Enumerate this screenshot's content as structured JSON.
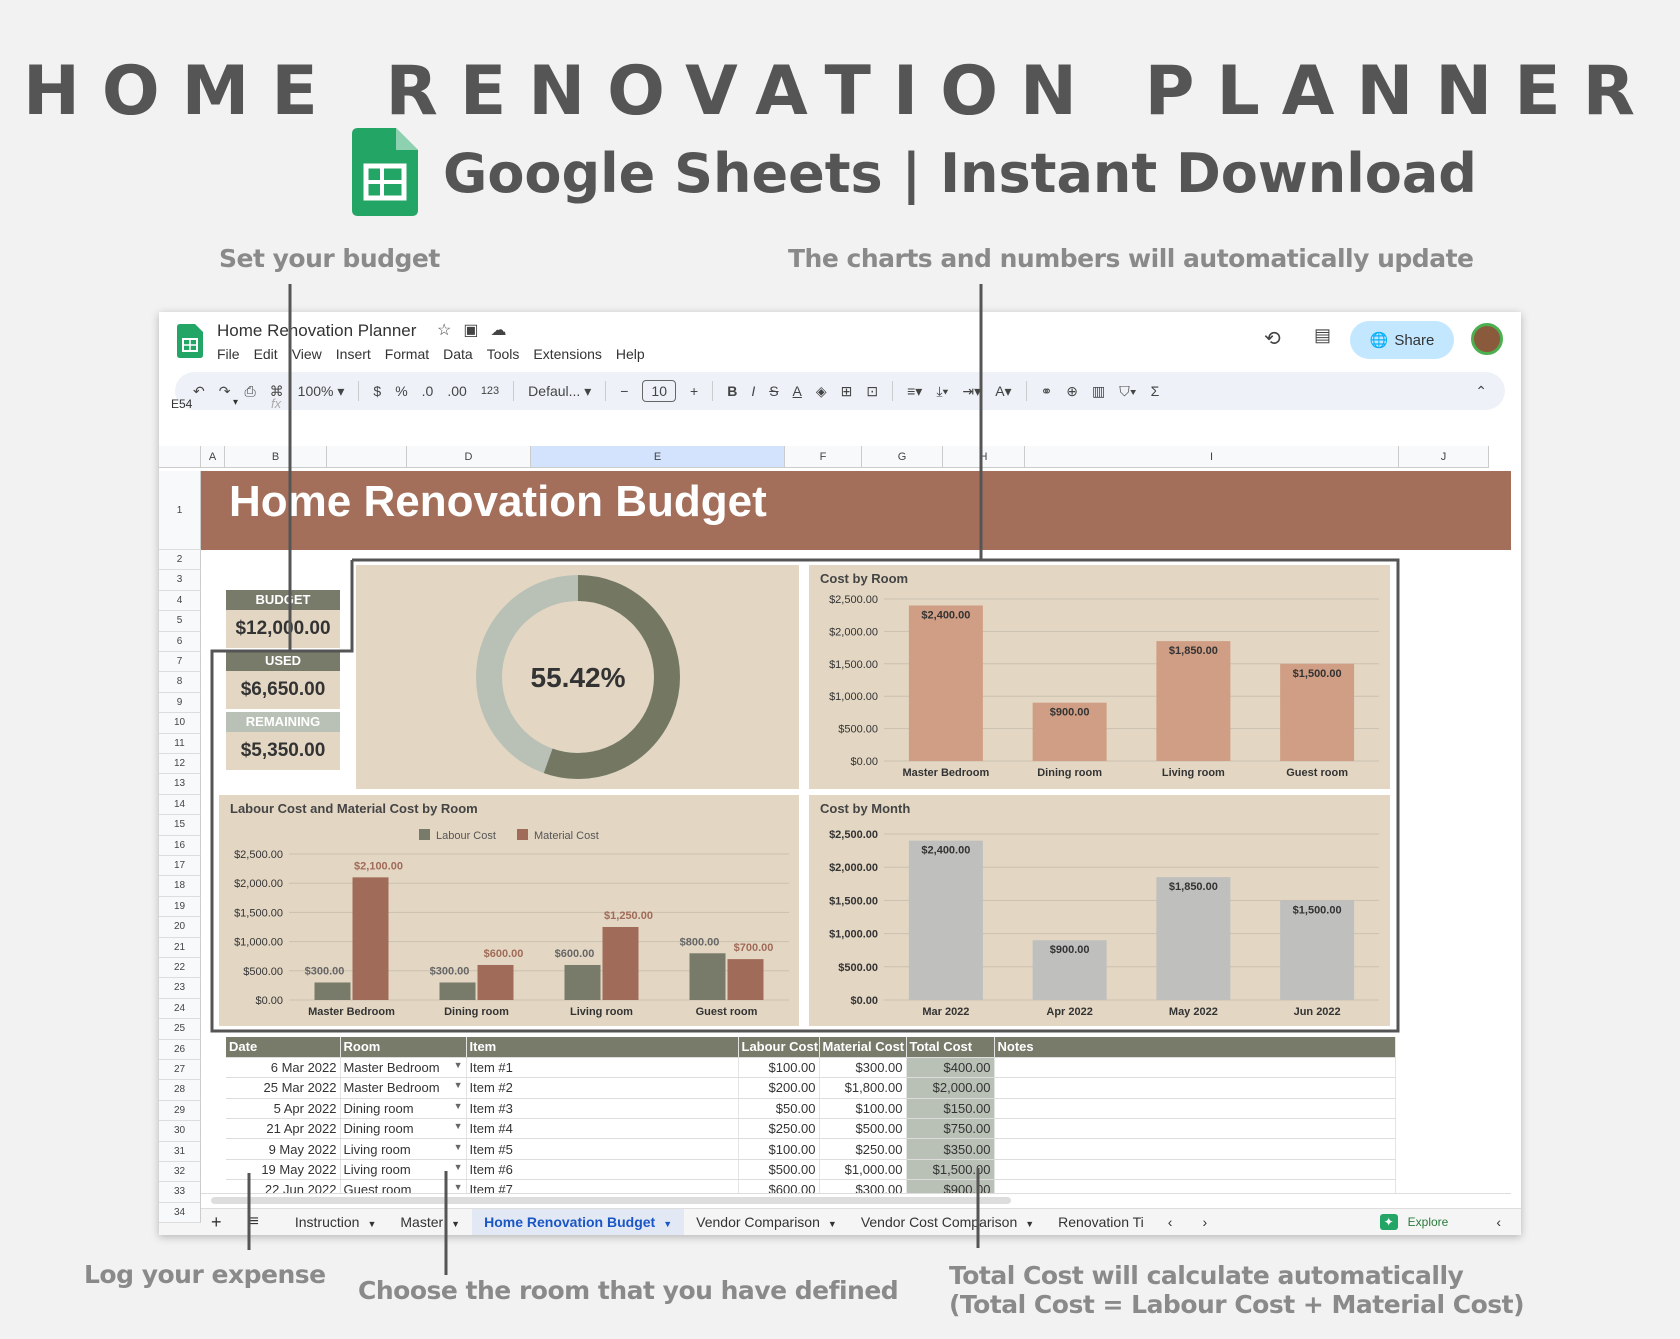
{
  "hero": {
    "title": "HOME RENOVATION PLANNER",
    "subtitle": "Google Sheets | Instant Download"
  },
  "annotations": {
    "budget": "Set your budget",
    "charts": "The charts and numbers will automatically update",
    "expense": "Log your expense",
    "room": "Choose the room that you have defined",
    "total1": "Total Cost will calculate automatically",
    "total2": "(Total Cost = Labour Cost + Material Cost)"
  },
  "app": {
    "doc_title": "Home Renovation Planner",
    "menu": [
      "File",
      "Edit",
      "View",
      "Insert",
      "Format",
      "Data",
      "Tools",
      "Extensions",
      "Help"
    ],
    "share": "Share",
    "zoom": "100%",
    "font": "Defaul...",
    "font_size": "10",
    "cell_ref": "E54",
    "fx": "fx",
    "currency": "$",
    "percent": "%",
    "dec_less": ".0",
    "dec_more": ".00",
    "num_fmt": "123"
  },
  "columns": [
    "A",
    "B",
    "",
    "D",
    "E",
    "F",
    "G",
    "H",
    "I",
    "J"
  ],
  "rows": [
    "1",
    "2",
    "3",
    "4",
    "5",
    "6",
    "7",
    "8",
    "9",
    "10",
    "11",
    "12",
    "13",
    "14",
    "15",
    "16",
    "17",
    "18",
    "19",
    "20",
    "21",
    "22",
    "23",
    "24",
    "25",
    "26",
    "27",
    "28",
    "29",
    "30",
    "31",
    "32",
    "33",
    "34"
  ],
  "sheet": {
    "banner": "Home Renovation Budget",
    "budget_label": "BUDGET",
    "budget": "$12,000.00",
    "used_label": "USED",
    "used": "$6,650.00",
    "remaining_label": "REMAINING",
    "remaining": "$5,350.00",
    "percent": "55.42%"
  },
  "colors": {
    "banner": "#a36f5a",
    "olive": "#787a6a",
    "beige": "#e3d7c4",
    "room_bar": "#d09e84",
    "material": "#a06b58",
    "month_bar": "#bfbfbd",
    "donut_rest": "#b9c0b5"
  },
  "chart_data": [
    {
      "id": "room",
      "type": "bar",
      "title": "Cost by Room",
      "categories": [
        "Master Bedroom",
        "Dining room",
        "Living room",
        "Guest room"
      ],
      "values": [
        2400,
        900,
        1850,
        1500
      ],
      "labels": [
        "$2,400.00",
        "$900.00",
        "$1,850.00",
        "$1,500.00"
      ],
      "yticks": [
        "$0.00",
        "$500.00",
        "$1,000.00",
        "$1,500.00",
        "$2,000.00",
        "$2,500.00"
      ],
      "ylim": [
        0,
        2500
      ]
    },
    {
      "id": "labmat",
      "type": "bar",
      "title": "Labour Cost and Material Cost by Room",
      "categories": [
        "Master Bedroom",
        "Dining room",
        "Living room",
        "Guest room"
      ],
      "series": [
        {
          "name": "Labour Cost",
          "values": [
            300,
            300,
            600,
            800
          ],
          "labels": [
            "$300.00",
            "$300.00",
            "$600.00",
            "$800.00"
          ]
        },
        {
          "name": "Material Cost",
          "values": [
            2100,
            600,
            1250,
            700
          ],
          "labels": [
            "$2,100.00",
            "$600.00",
            "$1,250.00",
            "$700.00"
          ]
        }
      ],
      "yticks": [
        "$0.00",
        "$500.00",
        "$1,000.00",
        "$1,500.00",
        "$2,000.00",
        "$2,500.00"
      ],
      "ylim": [
        0,
        2500
      ],
      "legend": "top"
    },
    {
      "id": "month",
      "type": "bar",
      "title": "Cost by Month",
      "categories": [
        "Mar 2022",
        "Apr 2022",
        "May 2022",
        "Jun 2022"
      ],
      "values": [
        2400,
        900,
        1850,
        1500
      ],
      "labels": [
        "$2,400.00",
        "$900.00",
        "$1,850.00",
        "$1,500.00"
      ],
      "yticks": [
        "$0.00",
        "$500.00",
        "$1,000.00",
        "$1,500.00",
        "$2,000.00",
        "$2,500.00"
      ],
      "ylim": [
        0,
        2500
      ]
    },
    {
      "id": "donut",
      "type": "pie",
      "values": [
        55.42,
        44.58
      ]
    }
  ],
  "table": {
    "headers": [
      "Date",
      "Room",
      "Item",
      "Labour Cost",
      "Material Cost",
      "Total Cost",
      "Notes"
    ],
    "rows": [
      [
        "6 Mar 2022",
        "Master Bedroom",
        "Item #1",
        "$100.00",
        "$300.00",
        "$400.00"
      ],
      [
        "25 Mar 2022",
        "Master Bedroom",
        "Item #2",
        "$200.00",
        "$1,800.00",
        "$2,000.00"
      ],
      [
        "5 Apr 2022",
        "Dining room",
        "Item #3",
        "$50.00",
        "$100.00",
        "$150.00"
      ],
      [
        "21 Apr 2022",
        "Dining room",
        "Item #4",
        "$250.00",
        "$500.00",
        "$750.00"
      ],
      [
        "9 May 2022",
        "Living room",
        "Item #5",
        "$100.00",
        "$250.00",
        "$350.00"
      ],
      [
        "19 May 2022",
        "Living room",
        "Item #6",
        "$500.00",
        "$1,000.00",
        "$1,500.00"
      ],
      [
        "22 Jun 2022",
        "Guest room",
        "Item #7",
        "$600.00",
        "$300.00",
        "$900.00"
      ]
    ]
  },
  "tabs": [
    "Instruction",
    "Master",
    "Home Renovation Budget",
    "Vendor Comparison",
    "Vendor Cost Comparison",
    "Renovation Ti"
  ],
  "explore": "Explore"
}
